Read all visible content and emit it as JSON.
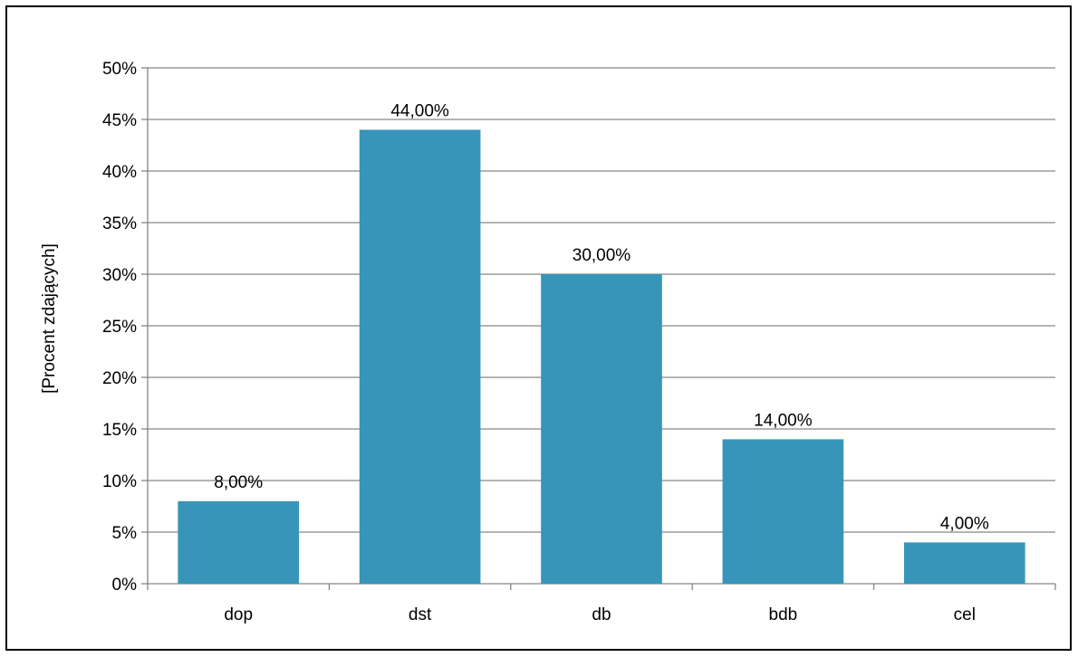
{
  "chart_data": {
    "type": "bar",
    "title": "",
    "xlabel": "",
    "ylabel": "[Procent zdających]",
    "categories": [
      "dop",
      "dst",
      "db",
      "bdb",
      "cel"
    ],
    "values": [
      8,
      44,
      30,
      14,
      4
    ],
    "data_labels": [
      "8,00%",
      "44,00%",
      "30,00%",
      "14,00%",
      "4,00%"
    ],
    "ylim": [
      0,
      50
    ],
    "yticks": [
      0,
      5,
      10,
      15,
      20,
      25,
      30,
      35,
      40,
      45,
      50
    ],
    "ytick_labels": [
      "0%",
      "5%",
      "10%",
      "15%",
      "20%",
      "25%",
      "30%",
      "35%",
      "40%",
      "45%",
      "50%"
    ],
    "grid": true,
    "legend": "none",
    "bar_color": "#3795BA",
    "grid_color": "#868686"
  }
}
